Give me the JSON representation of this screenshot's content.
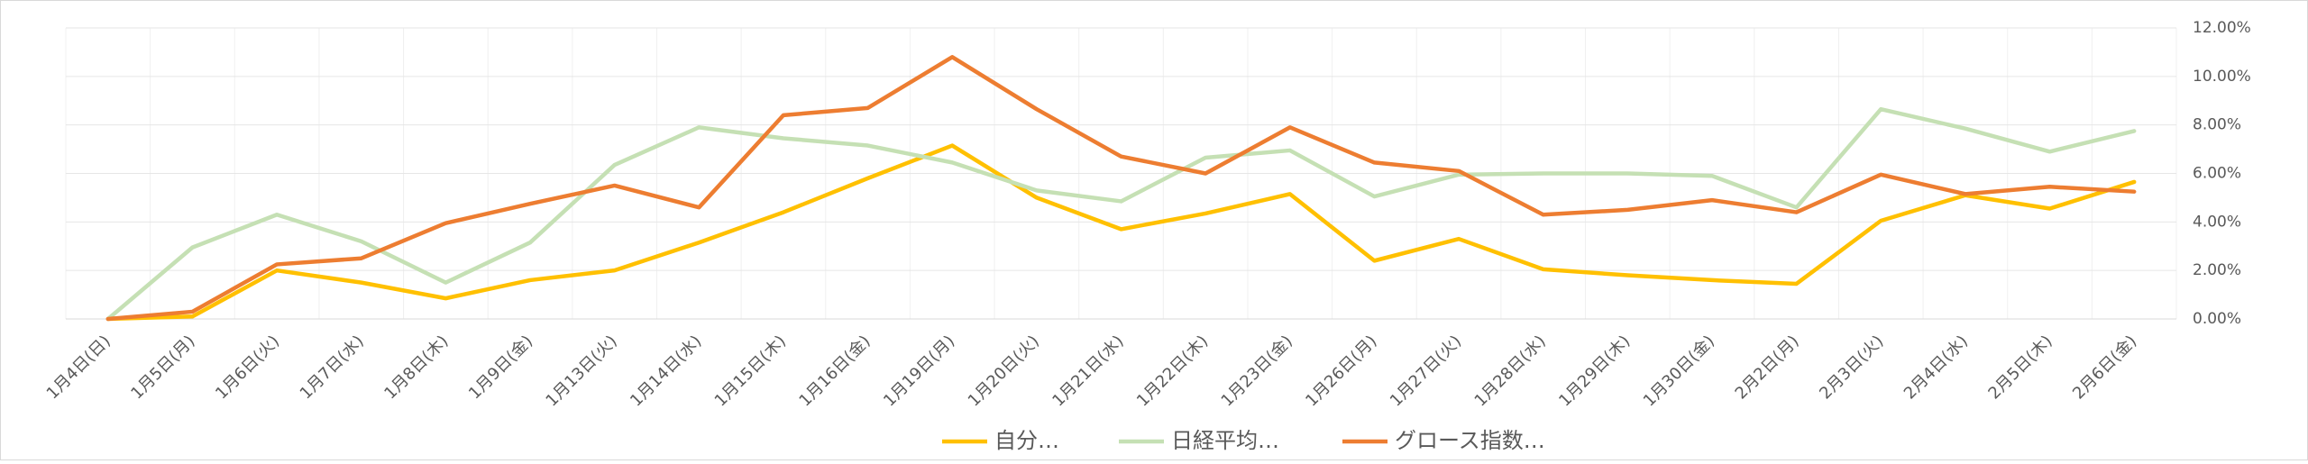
{
  "chart_data": {
    "type": "line",
    "categories": [
      "1月4日(日)",
      "1月5日(月)",
      "1月6日(火)",
      "1月7日(水)",
      "1月8日(木)",
      "1月9日(金)",
      "1月13日(火)",
      "1月14日(水)",
      "1月15日(木)",
      "1月16日(金)",
      "1月19日(月)",
      "1月20日(火)",
      "1月21日(水)",
      "1月22日(木)",
      "1月23日(金)",
      "1月26日(月)",
      "1月27日(火)",
      "1月28日(水)",
      "1月29日(木)",
      "1月30日(金)",
      "2月2日(月)",
      "2月3日(火)",
      "2月4日(水)",
      "2月5日(木)",
      "2月6日(金)"
    ],
    "series": [
      {
        "name": "自分…",
        "color": "#ffc000",
        "values": [
          0,
          0.1,
          2.0,
          1.5,
          0.85,
          1.6,
          2.0,
          3.15,
          4.4,
          5.8,
          7.15,
          5.0,
          3.7,
          4.35,
          5.15,
          2.4,
          3.3,
          2.05,
          1.8,
          1.6,
          1.45,
          4.05,
          5.1,
          4.55,
          5.65
        ]
      },
      {
        "name": "日経平均…",
        "color": "#c5e0b4",
        "values": [
          0,
          2.95,
          4.3,
          3.2,
          1.5,
          3.15,
          6.35,
          7.9,
          7.45,
          7.15,
          6.45,
          5.3,
          4.85,
          6.65,
          6.95,
          5.05,
          5.95,
          6.0,
          6.0,
          5.9,
          4.6,
          8.65,
          7.85,
          6.9,
          7.75
        ]
      },
      {
        "name": "グロース指数…",
        "color": "#ed7d31",
        "values": [
          0,
          0.3,
          2.25,
          2.5,
          3.95,
          4.75,
          5.5,
          4.6,
          8.4,
          8.7,
          10.8,
          8.65,
          6.7,
          6.0,
          7.9,
          6.45,
          6.1,
          4.3,
          4.5,
          4.9,
          4.4,
          5.95,
          5.15,
          5.45,
          5.25
        ]
      }
    ],
    "ylim": [
      0,
      12
    ],
    "yticks": [
      {
        "value": 0,
        "label": "0.00%"
      },
      {
        "value": 2,
        "label": "2.00%"
      },
      {
        "value": 4,
        "label": "4.00%"
      },
      {
        "value": 6,
        "label": "6.00%"
      },
      {
        "value": 8,
        "label": "8.00%"
      },
      {
        "value": 10,
        "label": "10.00%"
      },
      {
        "value": 12,
        "label": "12.00%"
      }
    ],
    "y_axis_side": "right",
    "grid": true,
    "legend": "bottom"
  }
}
